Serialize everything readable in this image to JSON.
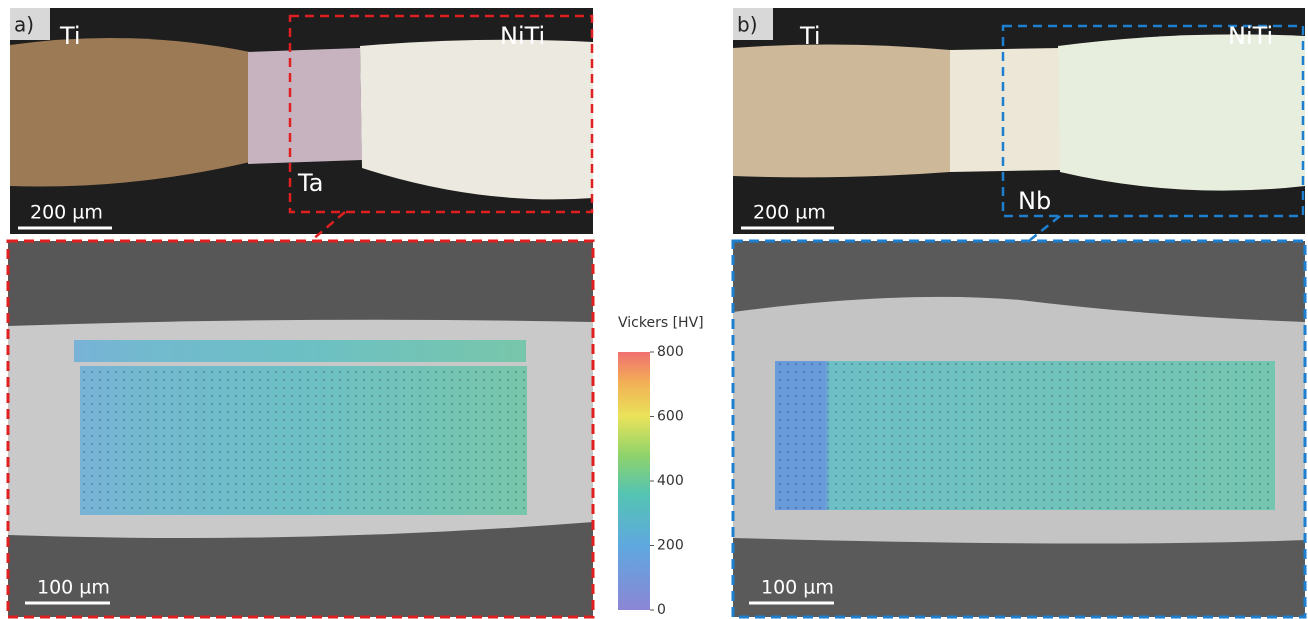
{
  "panels": [
    {
      "label": "a)",
      "materials": [
        "Ti",
        "NiTi",
        "Ta"
      ],
      "scale_top": "200 µm",
      "scale_bottom": "100 µm"
    },
    {
      "label": "b)",
      "materials": [
        "Ti",
        "NiTi",
        "Nb"
      ],
      "scale_top": "200 µm",
      "scale_bottom": "100 µm"
    }
  ],
  "colorbar": {
    "title": "Vickers [HV]",
    "lim": [
      0,
      800
    ],
    "ticks": [
      0,
      200,
      400,
      600,
      800
    ]
  }
}
